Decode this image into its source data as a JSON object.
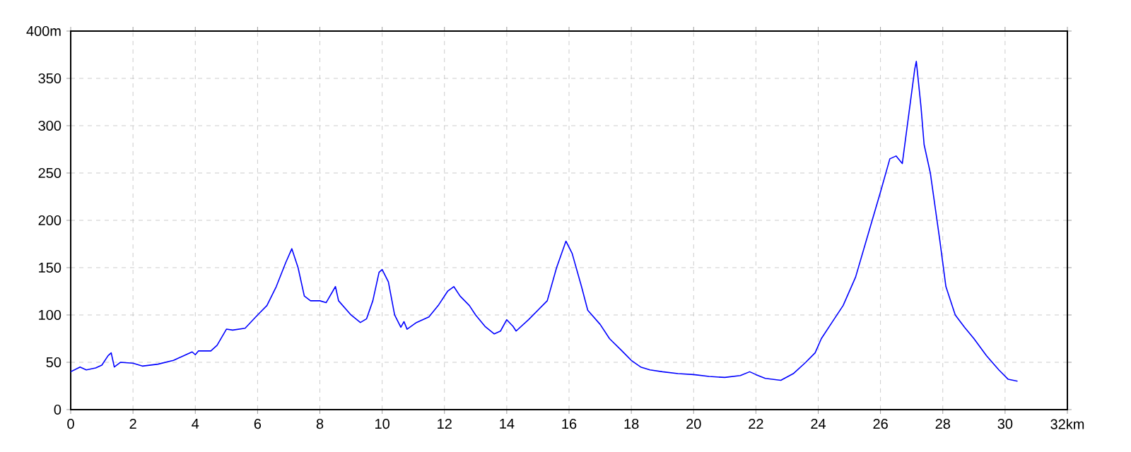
{
  "chart_data": {
    "type": "line",
    "color": "#0000ff",
    "grid": true,
    "x": [
      0,
      0.3,
      0.5,
      0.8,
      1.0,
      1.2,
      1.3,
      1.4,
      1.6,
      2.0,
      2.3,
      2.8,
      3.3,
      3.7,
      3.9,
      4.0,
      4.1,
      4.5,
      4.7,
      5.0,
      5.2,
      5.6,
      6.0,
      6.3,
      6.6,
      6.9,
      7.1,
      7.3,
      7.5,
      7.7,
      8.0,
      8.2,
      8.5,
      8.6,
      9.0,
      9.3,
      9.5,
      9.7,
      9.9,
      10.0,
      10.2,
      10.4,
      10.6,
      10.7,
      10.8,
      11.1,
      11.5,
      11.8,
      12.1,
      12.3,
      12.5,
      12.8,
      13.0,
      13.3,
      13.6,
      13.8,
      14.0,
      14.2,
      14.3,
      14.7,
      15.0,
      15.3,
      15.6,
      15.9,
      16.1,
      16.4,
      16.6,
      17.0,
      17.3,
      17.7,
      18.0,
      18.3,
      18.6,
      19.0,
      19.5,
      20.0,
      20.5,
      21.0,
      21.5,
      21.8,
      22.0,
      22.3,
      22.8,
      23.2,
      23.6,
      23.9,
      24.1,
      24.5,
      24.8,
      25.2,
      25.6,
      26.0,
      26.3,
      26.5,
      26.7,
      26.9,
      27.1,
      27.15,
      27.3,
      27.4,
      27.6,
      27.9,
      28.1,
      28.4,
      28.7,
      29.0,
      29.4,
      29.8,
      30.1,
      30.4
    ],
    "values": [
      40,
      45,
      42,
      44,
      47,
      57,
      60,
      45,
      50,
      49,
      46,
      48,
      52,
      58,
      61,
      58,
      62,
      62,
      68,
      85,
      84,
      86,
      100,
      110,
      130,
      155,
      170,
      150,
      120,
      115,
      115,
      113,
      130,
      115,
      100,
      92,
      96,
      115,
      145,
      148,
      135,
      100,
      87,
      93,
      85,
      92,
      98,
      110,
      125,
      130,
      120,
      110,
      100,
      88,
      80,
      83,
      95,
      88,
      83,
      95,
      105,
      115,
      150,
      178,
      165,
      130,
      105,
      90,
      75,
      62,
      52,
      45,
      42,
      40,
      38,
      37,
      35,
      34,
      36,
      40,
      37,
      33,
      31,
      38,
      50,
      60,
      75,
      95,
      110,
      140,
      185,
      230,
      265,
      268,
      260,
      310,
      360,
      368,
      320,
      280,
      250,
      180,
      130,
      100,
      87,
      75,
      57,
      42,
      32,
      30
    ],
    "xlim": [
      0,
      32
    ],
    "ylim": [
      0,
      400
    ],
    "xticks": [
      0,
      2,
      4,
      6,
      8,
      10,
      12,
      14,
      16,
      18,
      20,
      22,
      24,
      26,
      28,
      30,
      {
        "value": 32,
        "label": "32km"
      }
    ],
    "yticks": [
      0,
      50,
      100,
      150,
      200,
      250,
      300,
      350,
      {
        "value": 400,
        "label": "400m"
      }
    ]
  }
}
